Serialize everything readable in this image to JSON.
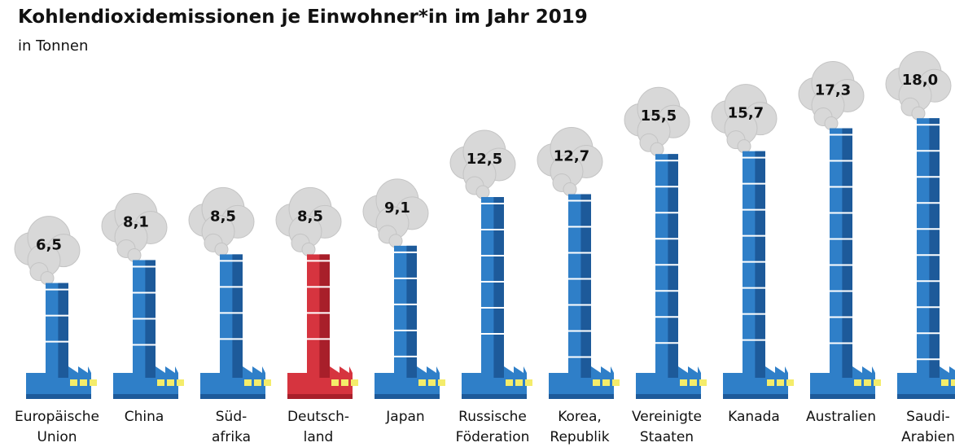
{
  "chart_data": {
    "type": "bar",
    "title": "Kohlendioxidemissionen je Einwohner*in im Jahr 2019",
    "subtitle": "in Tonnen",
    "categories": [
      "Europäische\nUnion",
      "China",
      "Süd-\nafrika",
      "Deutsch-\nland",
      "Japan",
      "Russische\nFöderation",
      "Korea,\nRepublik",
      "Vereinigte\nStaaten",
      "Kanada",
      "Australien",
      "Saudi-\nArabien"
    ],
    "values": [
      6.5,
      8.1,
      8.5,
      8.5,
      9.1,
      12.5,
      12.7,
      15.5,
      15.7,
      17.3,
      18.0
    ],
    "value_labels": [
      "6,5",
      "8,1",
      "8,5",
      "8,5",
      "9,1",
      "12,5",
      "12,7",
      "15,5",
      "15,7",
      "17,3",
      "18,0"
    ],
    "colors": [
      "#2f7fc8",
      "#2f7fc8",
      "#2f7fc8",
      "#d6343f",
      "#2f7fc8",
      "#2f7fc8",
      "#2f7fc8",
      "#2f7fc8",
      "#2f7fc8",
      "#2f7fc8",
      "#2f7fc8"
    ]
  }
}
